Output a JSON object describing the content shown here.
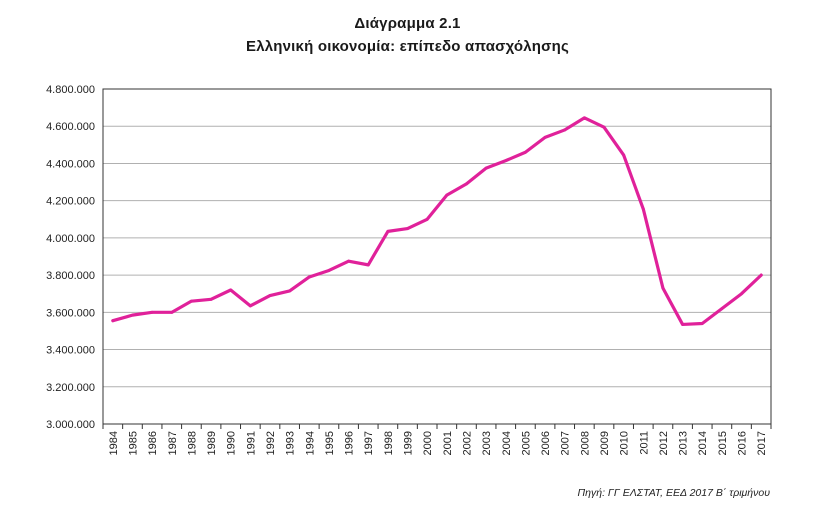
{
  "title": "Διάγραμμα 2.1",
  "subtitle": "Ελληνική οικονομία: επίπεδο απασχόλησης",
  "source": "Πηγή: ΓΓ ΕΛΣΤΑΤ, ΕΕΔ 2017 Β΄ τριμήνου",
  "colors": {
    "line": "#e0219a",
    "grid": "#b0b0b0",
    "frame": "#333333"
  },
  "chart_data": {
    "type": "line",
    "title": "Διάγραμμα 2.1",
    "subtitle": "Ελληνική οικονομία: επίπεδο απασχόλησης",
    "xlabel": "",
    "ylabel": "",
    "ylim": [
      3000000,
      4800000
    ],
    "yticks": [
      3000000,
      3200000,
      3400000,
      3600000,
      3800000,
      4000000,
      4200000,
      4400000,
      4600000,
      4800000
    ],
    "ytick_labels": [
      "3.000.000",
      "3.200.000",
      "3.400.000",
      "3.600.000",
      "3.800.000",
      "4.000.000",
      "4.200.000",
      "4.400.000",
      "4.600.000",
      "4.800.000"
    ],
    "grid": true,
    "categories": [
      "1984",
      "1985",
      "1986",
      "1987",
      "1988",
      "1989",
      "1990",
      "1991",
      "1992",
      "1993",
      "1994",
      "1995",
      "1996",
      "1997",
      "1998",
      "1999",
      "2000",
      "2001",
      "2002",
      "2003",
      "2004",
      "2005",
      "2006",
      "2007",
      "2008",
      "2009",
      "2010",
      "2011",
      "2012",
      "2013",
      "2014",
      "2015",
      "2016",
      "2017"
    ],
    "series": [
      {
        "values": [
          3555000,
          3585000,
          3600000,
          3600000,
          3660000,
          3670000,
          3720000,
          3635000,
          3690000,
          3715000,
          3790000,
          3825000,
          3875000,
          3855000,
          4035000,
          4050000,
          4100000,
          4230000,
          4290000,
          4375000,
          4415000,
          4460000,
          4540000,
          4580000,
          4645000,
          4595000,
          4445000,
          4155000,
          3730000,
          3535000,
          3540000,
          3620000,
          3700000,
          3800000
        ]
      }
    ]
  }
}
